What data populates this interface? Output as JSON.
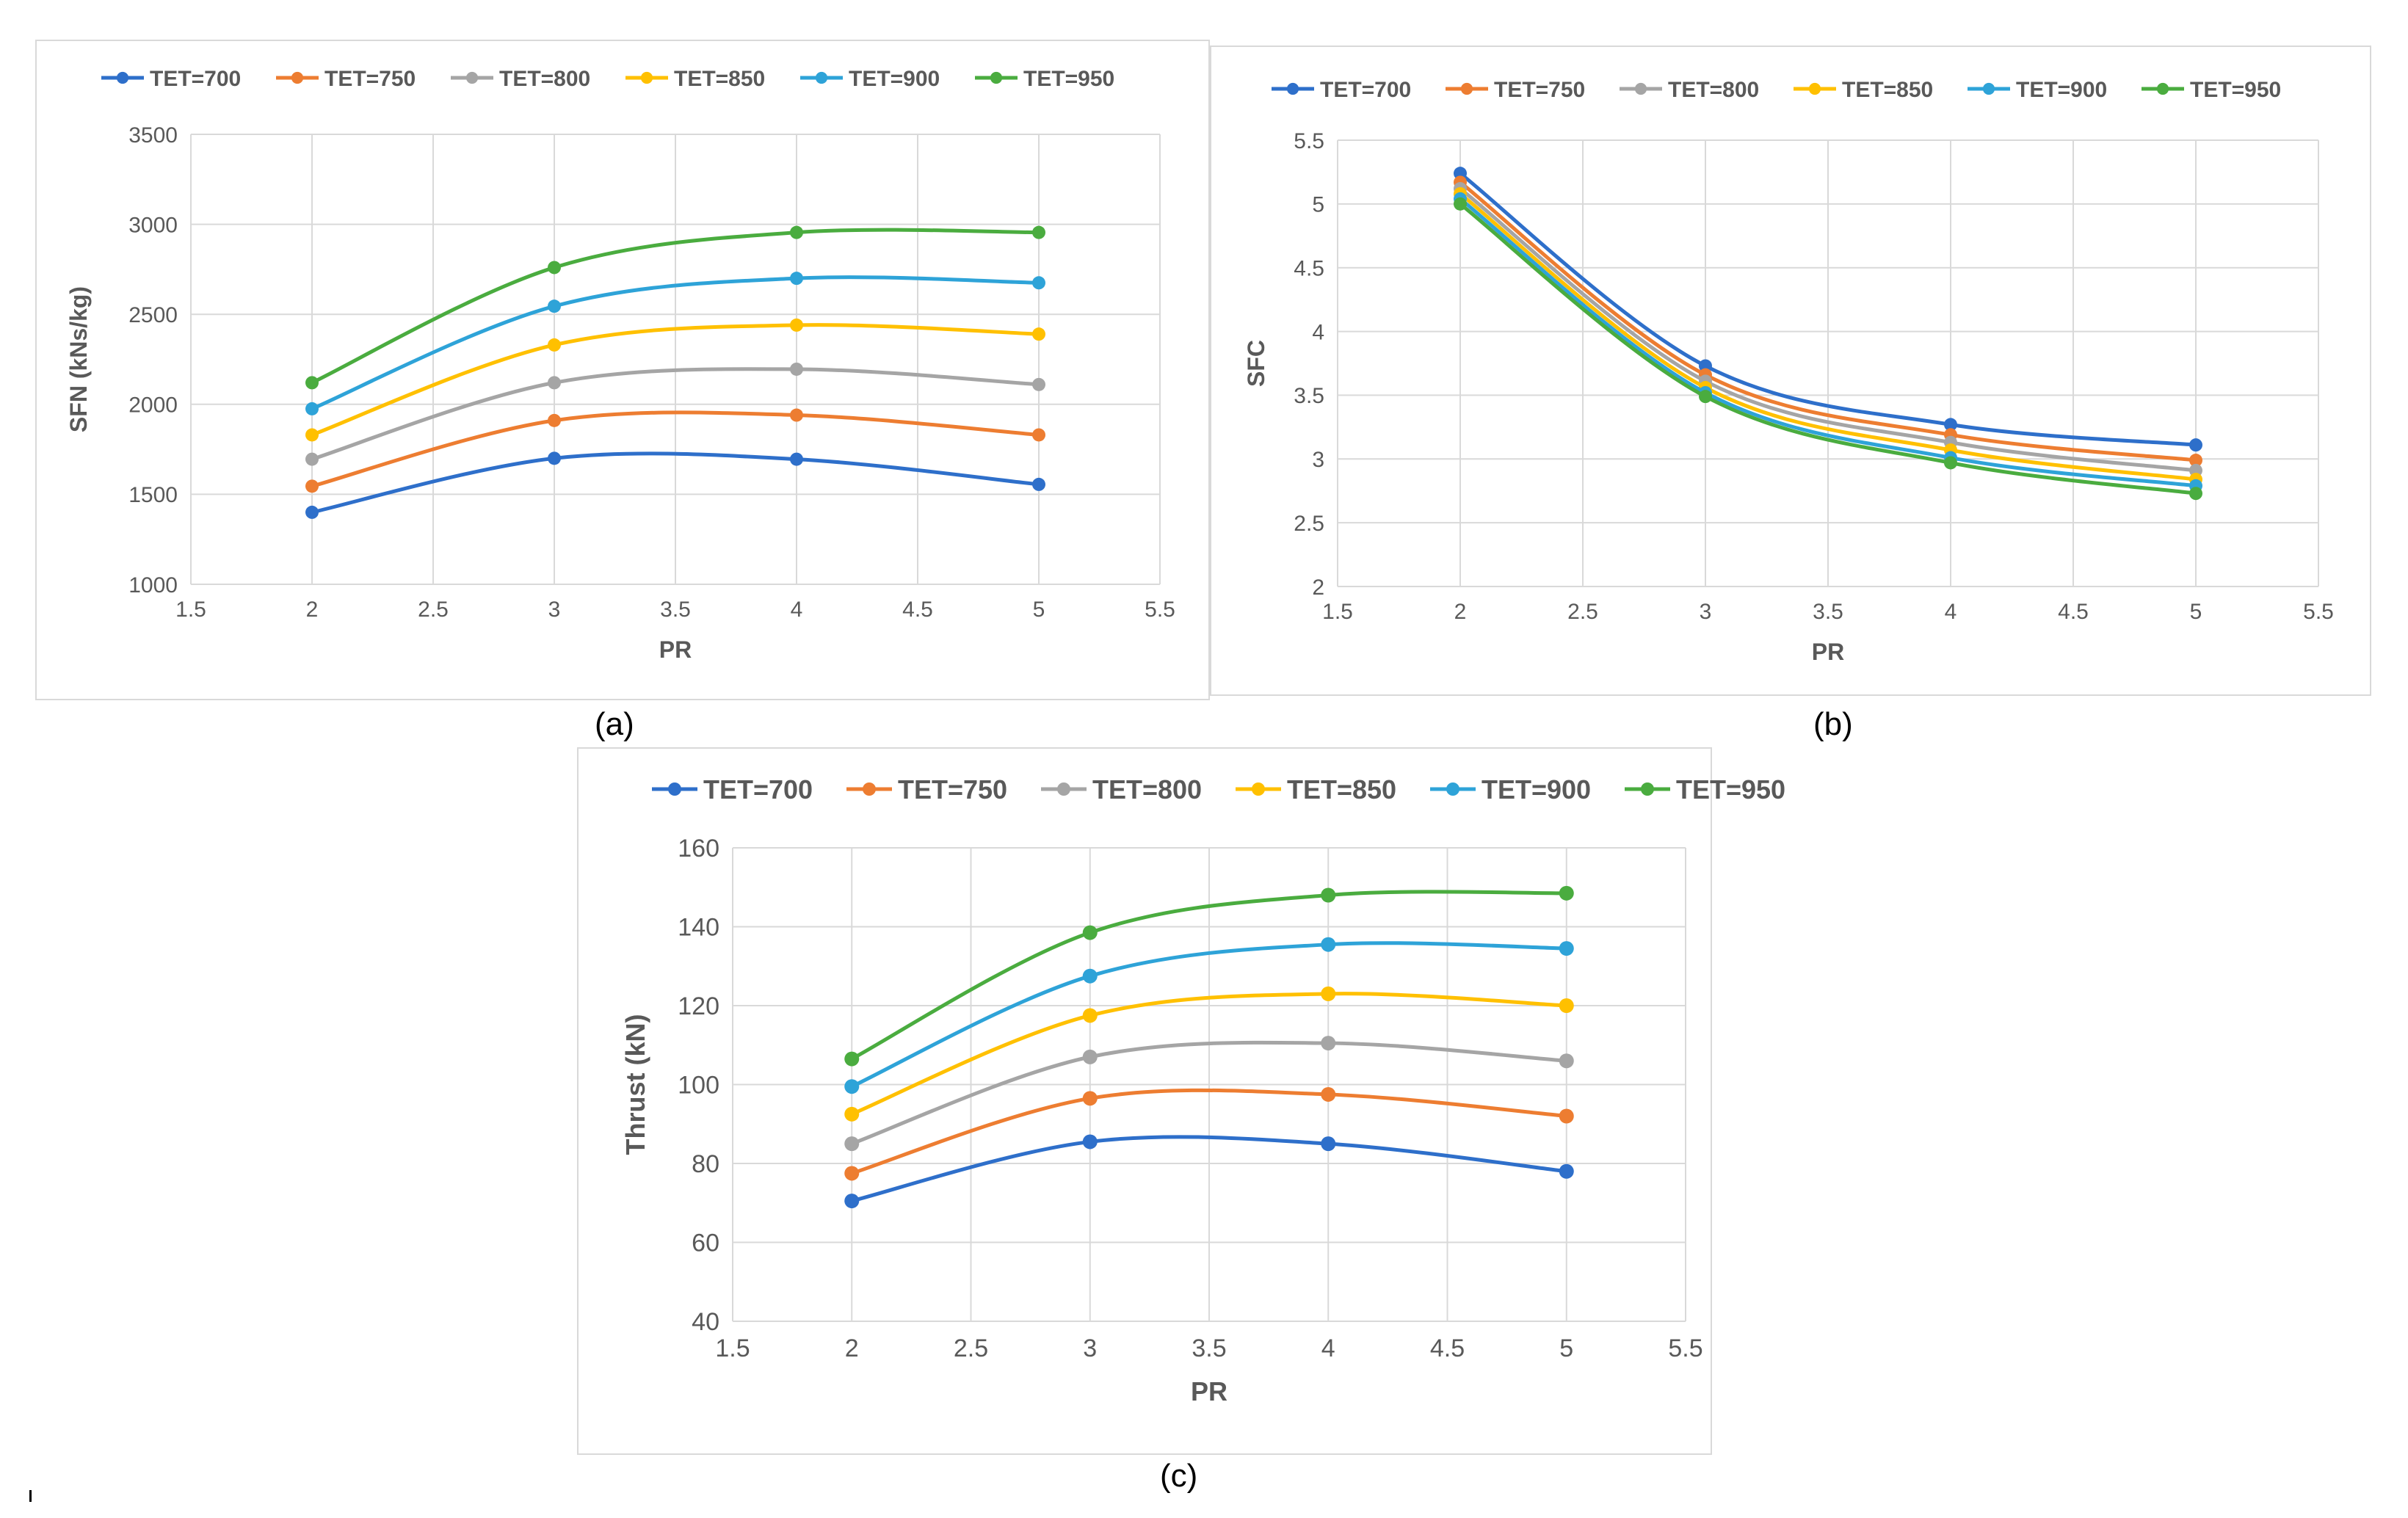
{
  "captions": {
    "a": "(a)",
    "b": "(b)",
    "c": "(c)"
  },
  "colors": [
    "#2e6fca",
    "#ed7d31",
    "#a5a5a5",
    "#ffc000",
    "#2ea3d8",
    "#4aac3f"
  ],
  "chart_data": [
    {
      "type": "line",
      "title": "",
      "xlabel": "PR",
      "ylabel": "SFN (kNs/kg)",
      "xlim": [
        1.5,
        5.5
      ],
      "xstep": 0.5,
      "ylim": [
        1000,
        3500
      ],
      "ystep": 500,
      "x_ticks": [
        "1.5",
        "2",
        "2.5",
        "3",
        "3.5",
        "4",
        "4.5",
        "5",
        "5.5"
      ],
      "y_ticks": [
        "1000",
        "1500",
        "2000",
        "2500",
        "3000",
        "3500"
      ],
      "grid": true,
      "legend_position": "top",
      "x": [
        2,
        3,
        4,
        5
      ],
      "series": [
        {
          "name": "TET=700",
          "values": [
            1400,
            1700,
            1695,
            1555
          ]
        },
        {
          "name": "TET=750",
          "values": [
            1545,
            1910,
            1940,
            1830
          ]
        },
        {
          "name": "TET=800",
          "values": [
            1695,
            2120,
            2195,
            2110
          ]
        },
        {
          "name": "TET=850",
          "values": [
            1830,
            2330,
            2440,
            2390
          ]
        },
        {
          "name": "TET=900",
          "values": [
            1975,
            2545,
            2700,
            2675
          ]
        },
        {
          "name": "TET=950",
          "values": [
            2120,
            2760,
            2955,
            2955
          ]
        }
      ]
    },
    {
      "type": "line",
      "title": "",
      "xlabel": "PR",
      "ylabel": "SFC",
      "xlim": [
        1.5,
        5.5
      ],
      "xstep": 0.5,
      "ylim": [
        2,
        5.5
      ],
      "ystep": 0.5,
      "x_ticks": [
        "1.5",
        "2",
        "2.5",
        "3",
        "3.5",
        "4",
        "4.5",
        "5",
        "5.5"
      ],
      "y_ticks": [
        "2",
        "2.5",
        "3",
        "3.5",
        "4",
        "4.5",
        "5",
        "5.5"
      ],
      "grid": true,
      "legend_position": "top",
      "x": [
        2,
        3,
        4,
        5
      ],
      "series": [
        {
          "name": "TET=700",
          "values": [
            5.24,
            3.73,
            3.27,
            3.11
          ]
        },
        {
          "name": "TET=750",
          "values": [
            5.17,
            3.66,
            3.19,
            2.99
          ]
        },
        {
          "name": "TET=800",
          "values": [
            5.12,
            3.61,
            3.13,
            2.91
          ]
        },
        {
          "name": "TET=850",
          "values": [
            5.08,
            3.56,
            3.07,
            2.84
          ]
        },
        {
          "name": "TET=900",
          "values": [
            5.04,
            3.52,
            3.01,
            2.79
          ]
        },
        {
          "name": "TET=950",
          "values": [
            5.0,
            3.49,
            2.97,
            2.73
          ]
        }
      ]
    },
    {
      "type": "line",
      "title": "",
      "xlabel": "PR",
      "ylabel": "Thrust (kN)",
      "xlim": [
        1.5,
        5.5
      ],
      "xstep": 0.5,
      "ylim": [
        40,
        160
      ],
      "ystep": 20,
      "x_ticks": [
        "1.5",
        "2",
        "2.5",
        "3",
        "3.5",
        "4",
        "4.5",
        "5",
        "5.5"
      ],
      "y_ticks": [
        "40",
        "60",
        "80",
        "100",
        "120",
        "140",
        "160"
      ],
      "grid": true,
      "legend_position": "top",
      "x": [
        2,
        3,
        4,
        5
      ],
      "series": [
        {
          "name": "TET=700",
          "values": [
            70.5,
            85.5,
            85,
            78
          ]
        },
        {
          "name": "TET=750",
          "values": [
            77.5,
            96.5,
            97.5,
            92
          ]
        },
        {
          "name": "TET=800",
          "values": [
            85,
            107,
            110.5,
            106
          ]
        },
        {
          "name": "TET=850",
          "values": [
            92.5,
            117.5,
            123,
            120
          ]
        },
        {
          "name": "TET=900",
          "values": [
            99.5,
            127.5,
            135.5,
            134.5
          ]
        },
        {
          "name": "TET=950",
          "values": [
            106.5,
            138.5,
            148,
            148.5
          ]
        }
      ]
    }
  ]
}
